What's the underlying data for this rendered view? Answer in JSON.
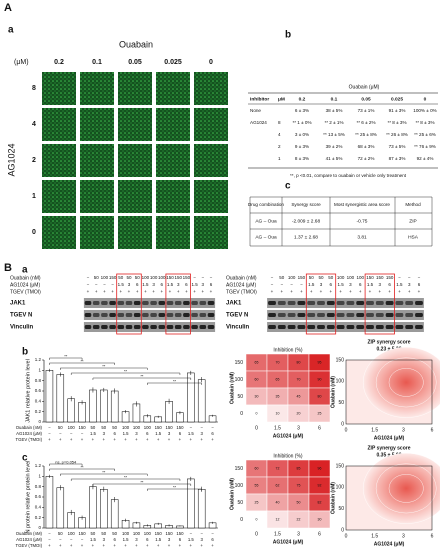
{
  "panel_A": {
    "label": "A",
    "a": {
      "label": "a",
      "title": "Ouabain",
      "unit": "(μM)",
      "y_label": "AG1024",
      "columns": [
        "0.2",
        "0.1",
        "0.05",
        "0.025",
        "0"
      ],
      "rows": [
        "8",
        "4",
        "2",
        "1",
        "0"
      ]
    },
    "b": {
      "label": "b",
      "table": {
        "group_header": "Ouabain (μM)",
        "header": [
          "Inhibitor",
          "μM",
          "0.2",
          "0.1",
          "0.05",
          "0.025",
          "0"
        ],
        "rows": [
          [
            "None",
            "",
            "6 ± 3%",
            "38 ± 5%",
            "73 ± 1%",
            "91 ± 3%",
            "100% ± 0%"
          ],
          [
            "AG1024",
            "8",
            "** 1 ± 0%",
            "** 2 ± 1%",
            "** 6 ± 2%",
            "** 8 ± 3%",
            "** 8 ± 3%"
          ],
          [
            "",
            "4",
            "3 ± 0%",
            "** 13 ± 5%",
            "** 25 ± 8%",
            "** 26 ± 8%",
            "** 25 ± 6%"
          ],
          [
            "",
            "2",
            "9 ± 3%",
            "39 ± 2%",
            "68 ± 3%",
            "73 ± 5%",
            "** 76 ± 9%"
          ],
          [
            "",
            "1",
            "8 ± 3%",
            "41 ± 5%",
            "72 ± 2%",
            "87 ± 3%",
            "92 ± 4%"
          ]
        ]
      },
      "note": "**, p <0.01, compare to ouabain or vehicle only treatment"
    },
    "c": {
      "label": "c",
      "table": {
        "header": [
          "Drug combination",
          "Synergy score",
          "Most synergistic area score",
          "Method"
        ],
        "rows": [
          [
            "AG – Oua",
            "-2.009 ± 2.68",
            "-0.75",
            "ZIP"
          ],
          [
            "AG – Oua",
            "1.37 ± 2.68",
            "3.81",
            "HSA"
          ]
        ]
      }
    }
  },
  "panel_B": {
    "label": "B",
    "a": {
      "label": "a",
      "treatments": [
        "Ouabain (nM)",
        "AG1024 (μM)",
        "TGEV (TMOI)"
      ],
      "bands": [
        "JAK1",
        "TGEV N",
        "Vinculin"
      ],
      "lanes": [
        [
          "−",
          "50",
          "100",
          "150",
          "50",
          "50",
          "50",
          "100",
          "100",
          "100",
          "150",
          "150",
          "150",
          "−",
          "−",
          "−"
        ],
        [
          "−",
          "−",
          "−",
          "−",
          "1.5",
          "3",
          "6",
          "1.5",
          "3",
          "6",
          "1.5",
          "3",
          "6",
          "1.5",
          "3",
          "6"
        ],
        [
          "+",
          "+",
          "+",
          "+",
          "+",
          "+",
          "+",
          "+",
          "+",
          "+",
          "+",
          "+",
          "+",
          "+",
          "+",
          "+"
        ]
      ]
    },
    "b": {
      "label": "b",
      "chart_data": {
        "type": "bar",
        "y_label": "JAK1 relative protein level",
        "color": "#ffffff",
        "values": [
          1.0,
          0.92,
          0.45,
          0.38,
          0.62,
          0.62,
          0.6,
          0.2,
          0.35,
          0.12,
          0.1,
          0.4,
          0.18,
          0.95,
          0.82,
          0.12
        ],
        "errors": [
          0.03,
          0.04,
          0.05,
          0.04,
          0.05,
          0.04,
          0.05,
          0.03,
          0.05,
          0.03,
          0.02,
          0.05,
          0.03,
          0.04,
          0.05,
          0.02
        ],
        "ylim": [
          0,
          1.2
        ],
        "yticks": [
          0,
          0.2,
          0.4,
          0.6,
          0.8,
          1,
          1.2
        ],
        "annotations": [
          "**",
          "**",
          "**",
          "**",
          "**",
          "**"
        ]
      },
      "heatmap": {
        "title": "Inhibition (%)",
        "x_label": "AG1024 (μM)",
        "y_label": "Ouabain (nM)",
        "x": [
          "0",
          "1.5",
          "3",
          "6"
        ],
        "y": [
          "150",
          "100",
          "50",
          "0"
        ],
        "values": [
          [
            65,
            70,
            80,
            95
          ],
          [
            60,
            65,
            70,
            90
          ],
          [
            30,
            35,
            45,
            80
          ],
          [
            0,
            10,
            20,
            25
          ]
        ],
        "colormap": [
          "#ffffff",
          "#d7191c"
        ]
      },
      "synergy": {
        "title": "ZIP synergy score",
        "score": "0.23 ± 5.38"
      }
    },
    "c": {
      "label": "c",
      "chart_data": {
        "type": "bar",
        "y_label": "N protein relative protein level",
        "color": "#ffffff",
        "values": [
          1.0,
          0.78,
          0.3,
          0.2,
          0.8,
          0.75,
          0.55,
          0.15,
          0.1,
          0.05,
          0.08,
          0.05,
          0.04,
          0.95,
          0.75,
          0.1
        ],
        "errors": [
          0.03,
          0.05,
          0.05,
          0.04,
          0.05,
          0.05,
          0.05,
          0.03,
          0.02,
          0.02,
          0.02,
          0.02,
          0.01,
          0.04,
          0.05,
          0.02
        ],
        "ylim": [
          0,
          1.2
        ],
        "yticks": [
          0,
          0.2,
          0.4,
          0.6,
          0.8,
          1,
          1.2
        ],
        "annotations": [
          "ns, p=0.054",
          "**",
          "**",
          "**",
          "**",
          "**"
        ]
      },
      "heatmap": {
        "title": "Inhibition (%)",
        "x_label": "AG1024 (μM)",
        "y_label": "Ouabain (nM)",
        "x": [
          "0",
          "1.5",
          "3",
          "6"
        ],
        "y": [
          "150",
          "100",
          "50",
          "0"
        ],
        "values": [
          [
            60,
            72,
            85,
            96
          ],
          [
            55,
            62,
            75,
            92
          ],
          [
            25,
            40,
            50,
            82
          ],
          [
            0,
            12,
            22,
            30
          ]
        ],
        "colormap": [
          "#ffffff",
          "#d7191c"
        ]
      },
      "synergy": {
        "title": "ZIP synergy score",
        "score": "0.35 ± 5.62"
      }
    }
  }
}
